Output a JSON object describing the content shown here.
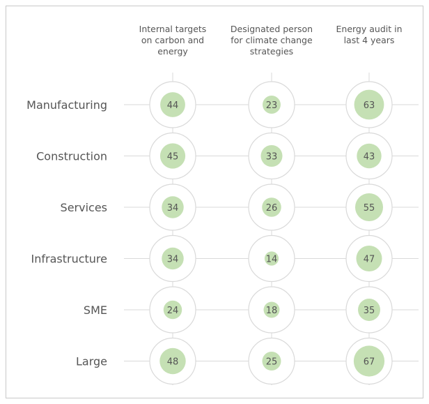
{
  "chart_data": {
    "type": "bubble-matrix",
    "title": "",
    "columns": [
      {
        "lines": [
          "Internal targets",
          "on carbon and",
          "energy"
        ]
      },
      {
        "lines": [
          "Designated person",
          "for climate change",
          "strategies"
        ]
      },
      {
        "lines": [
          "Energy audit in",
          "last 4 years"
        ]
      }
    ],
    "rows": [
      "Manufacturing",
      "Construction",
      "Services",
      "Infrastructure",
      "SME",
      "Large"
    ],
    "values": [
      [
        44,
        23,
        63
      ],
      [
        45,
        33,
        43
      ],
      [
        34,
        26,
        55
      ],
      [
        34,
        14,
        47
      ],
      [
        24,
        18,
        35
      ],
      [
        48,
        25,
        67
      ]
    ],
    "value_max": 100,
    "colors": {
      "bubble": "#c5e0b4",
      "outer_circle": "#d9d9d9",
      "grid_line": "#d9d9d9",
      "text": "#555555"
    }
  }
}
